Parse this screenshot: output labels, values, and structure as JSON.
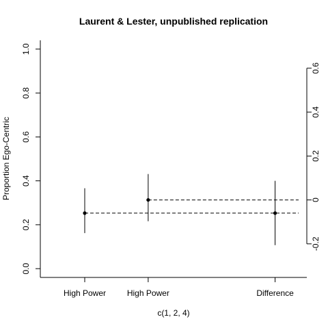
{
  "chart_data": {
    "type": "scatter",
    "title": "Laurent & Lester, unpublished replication",
    "xlabel": "c(1, 2, 4)",
    "ylabel": "Proportion Ego-Centric",
    "xlim": [
      0.3,
      4.5
    ],
    "ylim": [
      -0.04,
      1.04
    ],
    "left_ticks": [
      0.0,
      0.2,
      0.4,
      0.6,
      0.8,
      1.0
    ],
    "left_tick_labels": [
      "0.0",
      "0.2",
      "0.4",
      "0.6",
      "0.8",
      "1.0"
    ],
    "right_axis_ticks": [
      -0.2,
      0.0,
      0.2,
      0.4,
      0.6
    ],
    "right_axis_tick_labels": [
      "-0.2",
      "0",
      "0.2",
      "0.4",
      "0.6"
    ],
    "right_axis_zero_on_left_scale": 0.313,
    "categories": [
      {
        "x": 1,
        "label": "High Power"
      },
      {
        "x": 2,
        "label": "High Power"
      },
      {
        "x": 4,
        "label": "Difference"
      }
    ],
    "points": [
      {
        "x": 1,
        "y": 0.253,
        "lower": 0.162,
        "upper": 0.366
      },
      {
        "x": 2,
        "y": 0.313,
        "lower": 0.216,
        "upper": 0.431
      },
      {
        "x": 4,
        "y": 0.253,
        "lower": 0.107,
        "upper": 0.4
      }
    ],
    "reference_lines": [
      {
        "y": 0.253,
        "x_from": 1,
        "style": "dashed"
      },
      {
        "y": 0.313,
        "x_from": 2,
        "style": "dashed"
      }
    ]
  }
}
